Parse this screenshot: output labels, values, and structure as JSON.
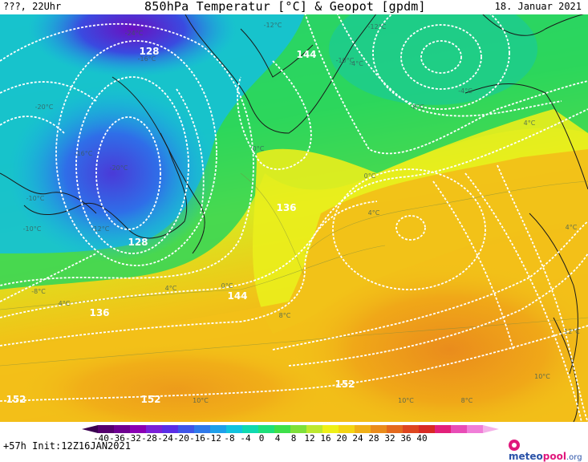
{
  "header": {
    "left": "???, 22Uhr",
    "title": "850hPa Temperatur [°C] & Geopot [gpdm]",
    "date": "18. Januar 2021"
  },
  "footer": {
    "run_info": "+57h Init:12Z16JAN2021",
    "brand_part1": "meteo",
    "brand_part2": "pool",
    "brand_part3": ".org"
  },
  "colorbar": {
    "ticks": [
      "-40",
      "-36",
      "-32",
      "-28",
      "-24",
      "-20",
      "-16",
      "-12",
      "-8",
      "-4",
      "0",
      "4",
      "8",
      "12",
      "16",
      "20",
      "24",
      "28",
      "32",
      "36",
      "40"
    ],
    "colors": [
      "#3a0050",
      "#55006e",
      "#6e0090",
      "#8a00b4",
      "#7a20d8",
      "#5a2ee6",
      "#3f55e8",
      "#2f79ea",
      "#1ea0ea",
      "#12c3de",
      "#10d9b0",
      "#1ee07a",
      "#3ee04a",
      "#7ee03a",
      "#bde830",
      "#eef018",
      "#f4d414",
      "#f0b018",
      "#ea8c1c",
      "#e46a1e",
      "#de4620",
      "#d82a24",
      "#e2207a",
      "#e84cb6",
      "#f07ed8",
      "#f4b0e8"
    ]
  },
  "map": {
    "geopot_labels": [
      {
        "text": "128"
      },
      {
        "text": "128"
      },
      {
        "text": "136"
      },
      {
        "text": "136"
      },
      {
        "text": "144"
      },
      {
        "text": "144"
      },
      {
        "text": "152"
      },
      {
        "text": "152"
      },
      {
        "text": "152"
      }
    ],
    "temp_labels": [
      {
        "text": "-24°C"
      },
      {
        "text": "-16°C"
      },
      {
        "text": "-20°C"
      },
      {
        "text": "-16°C"
      },
      {
        "text": "-20°C"
      },
      {
        "text": "-12°C"
      },
      {
        "text": "-10°C"
      },
      {
        "text": "-10°C"
      },
      {
        "text": "-12°C"
      },
      {
        "text": "-8°C"
      },
      {
        "text": "-4°C"
      },
      {
        "text": "0°C"
      },
      {
        "text": "0°C"
      },
      {
        "text": "4°C"
      },
      {
        "text": "0°C"
      },
      {
        "text": "4°C"
      },
      {
        "text": "8°C"
      },
      {
        "text": "4°C"
      },
      {
        "text": "-10°C"
      },
      {
        "text": "-12°C"
      },
      {
        "text": "-8°C"
      },
      {
        "text": "-4°C"
      },
      {
        "text": "4°C"
      },
      {
        "text": "4°C"
      },
      {
        "text": "10°C"
      },
      {
        "text": "10°C"
      },
      {
        "text": "8°C"
      },
      {
        "text": "10°C"
      },
      {
        "text": "12°C"
      }
    ]
  }
}
